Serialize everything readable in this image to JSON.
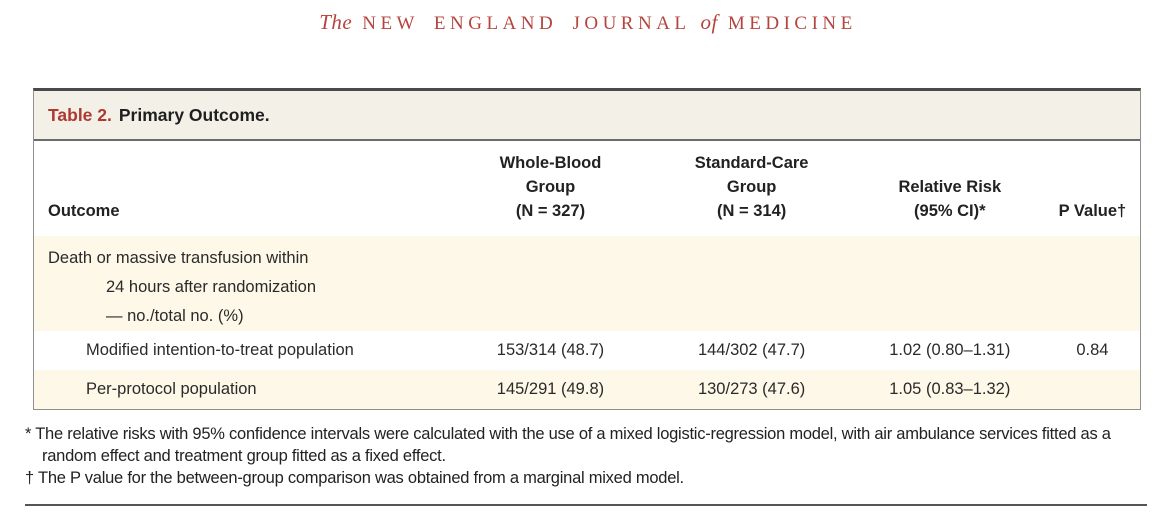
{
  "masthead": {
    "word_the": "The",
    "caps_1": "NEW ENGLAND JOURNAL",
    "word_of": "of",
    "caps_2": "MEDICINE"
  },
  "colors": {
    "masthead_red": "#b5443f",
    "table_label_red": "#ac3a32",
    "row_cream": "#fdf8e8",
    "titlebar_cream": "#f3f0e8",
    "border_gray": "#8f8f8f",
    "text_dark": "#2a2a2a"
  },
  "table": {
    "title_label": "Table 2.",
    "title_text": "Primary Outcome.",
    "header": {
      "outcome": "Outcome",
      "groups": [
        {
          "lines": [
            "Whole-Blood",
            "Group",
            "(N = 327)"
          ]
        },
        {
          "lines": [
            "Standard-Care",
            "Group",
            "(N = 314)"
          ]
        },
        {
          "lines": [
            "Relative Risk",
            "(95% CI)*"
          ]
        },
        {
          "lines": [
            "P Value†"
          ]
        }
      ]
    },
    "rows": [
      {
        "label_lines": [
          "Death or massive transfusion within",
          "24 hours after randomization",
          "— no./total no. (%)"
        ],
        "values": [
          "",
          "",
          "",
          ""
        ]
      },
      {
        "label": "Modified intention-to-treat population",
        "values": [
          "153/314 (48.7)",
          "144/302 (47.7)",
          "1.02 (0.80–1.31)",
          "0.84"
        ]
      },
      {
        "label": "Per-protocol population",
        "values": [
          "145/291 (49.8)",
          "130/273 (47.6)",
          "1.05 (0.83–1.32)",
          ""
        ]
      }
    ]
  },
  "chart_data": {
    "type": "table",
    "title": "Table 2. Primary Outcome.",
    "columns": [
      "Outcome",
      "Whole-Blood Group (N = 327)",
      "Standard-Care Group (N = 314)",
      "Relative Risk (95% CI)*",
      "P Value†"
    ],
    "rows": [
      [
        "Death or massive transfusion within 24 hours after randomization — no./total no. (%)",
        "",
        "",
        "",
        ""
      ],
      [
        "Modified intention-to-treat population",
        "153/314 (48.7)",
        "144/302 (47.7)",
        "1.02 (0.80–1.31)",
        "0.84"
      ],
      [
        "Per-protocol population",
        "145/291 (49.8)",
        "130/273 (47.6)",
        "1.05 (0.83–1.32)",
        ""
      ]
    ]
  },
  "footnotes": [
    {
      "marker": "*",
      "text": "The relative risks with 95% confidence intervals were calculated with the use of a mixed logistic-regression model, with air ambulance services fitted as a random effect and treatment group fitted as a fixed effect."
    },
    {
      "marker": "†",
      "text": "The P value for the between-group comparison was obtained from a marginal mixed model."
    }
  ]
}
